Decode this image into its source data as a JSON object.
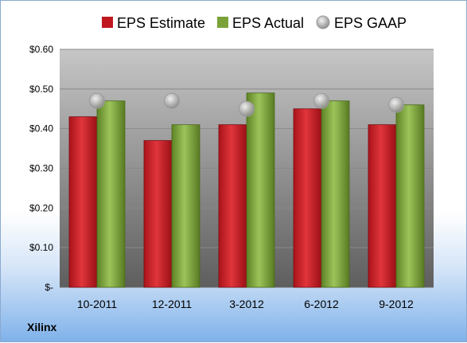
{
  "chart_data": {
    "type": "bar",
    "categories": [
      "10-2011",
      "12-2011",
      "3-2012",
      "6-2012",
      "9-2012"
    ],
    "series": [
      {
        "name": "EPS Estimate",
        "values": [
          0.43,
          0.37,
          0.41,
          0.45,
          0.41
        ],
        "color": "#c0171f",
        "kind": "bar"
      },
      {
        "name": "EPS Actual",
        "values": [
          0.47,
          0.41,
          0.49,
          0.47,
          0.46
        ],
        "color": "#7aa238",
        "kind": "bar"
      },
      {
        "name": "EPS GAAP",
        "values": [
          0.47,
          0.47,
          0.45,
          0.47,
          0.46
        ],
        "color": "#b8b8b8",
        "kind": "marker"
      }
    ],
    "yticks": [
      "$-",
      "$0.10",
      "$0.20",
      "$0.30",
      "$0.40",
      "$0.50",
      "$0.60"
    ],
    "ylim": [
      0,
      0.6
    ],
    "grid": true,
    "legend": "top"
  },
  "company": "Xilinx"
}
